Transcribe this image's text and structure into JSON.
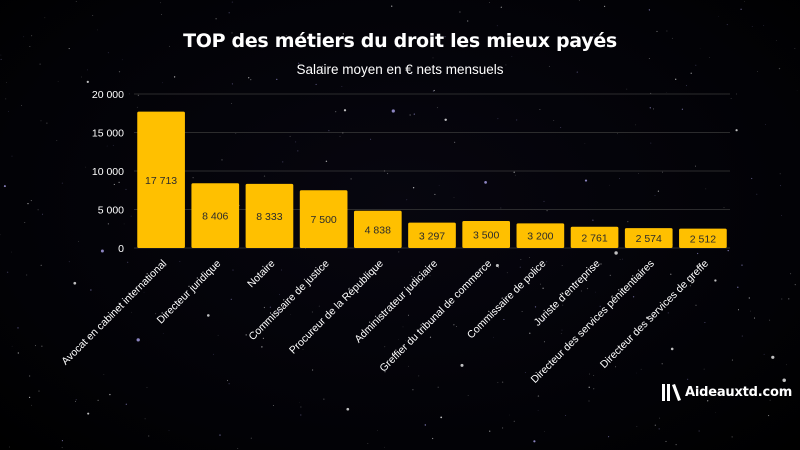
{
  "title": "TOP des métiers du droit les mieux payés",
  "subtitle": "Salaire moyen en € nets mensuels",
  "brand": {
    "name": "Aideauxtd.com"
  },
  "colors": {
    "background": "#000000",
    "bar": "#ffc000",
    "text": "#ffffff",
    "bar_label": "#2b2b2b",
    "grid": "#3a3a3a"
  },
  "chart_data": {
    "type": "bar",
    "title": "TOP des métiers du droit les mieux payés",
    "subtitle": "Salaire moyen en € nets mensuels",
    "xlabel": "",
    "ylabel": "",
    "ylim": [
      0,
      20000
    ],
    "yticks": [
      0,
      5000,
      10000,
      15000,
      20000
    ],
    "ytick_labels": [
      "0",
      "5 000",
      "10 000",
      "15 000",
      "20 000"
    ],
    "grid": true,
    "legend": "none",
    "categories": [
      "Avocat en cabinet international",
      "Directeur juridique",
      "Notaire",
      "Commissaire de justice",
      "Procureur de la République",
      "Administrateur judiciaire",
      "Greffier du tribunal de commerce",
      "Commissaire de police",
      "Juriste d'entreprise",
      "Directeur des services pénitentiaires",
      "Directeur des services de greffe"
    ],
    "values": [
      17713,
      8406,
      8333,
      7500,
      4838,
      3297,
      3500,
      3200,
      2761,
      2574,
      2512
    ],
    "data_labels": [
      "17 713",
      "8 406",
      "8 333",
      "7 500",
      "4 838",
      "3 297",
      "3 500",
      "3 200",
      "2 761",
      "2 574",
      "2 512"
    ]
  }
}
